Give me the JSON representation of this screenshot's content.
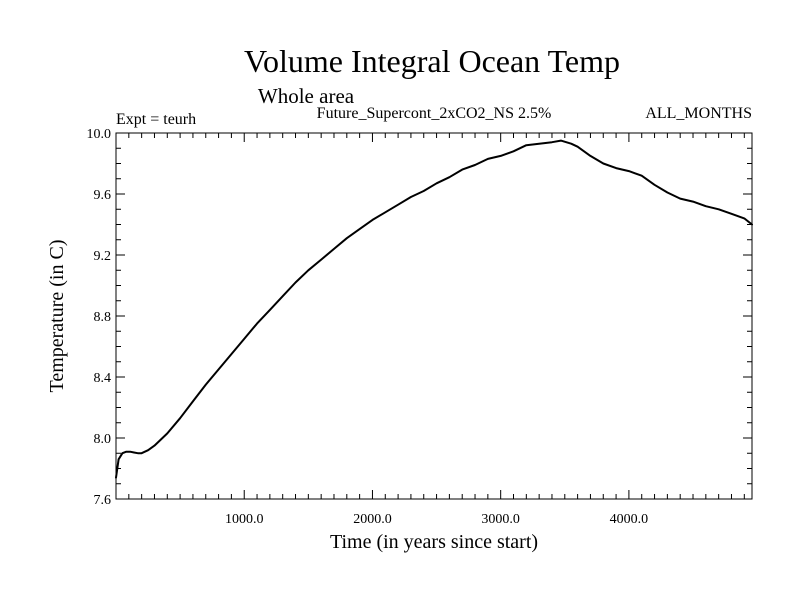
{
  "chart_data": {
    "type": "line",
    "title": "Volume Integral Ocean Temp",
    "subtitle": "Whole area",
    "expt_label": "Expt = teurh",
    "run_label": "Future_Supercont_2xCO2_NS 2.5%",
    "months_label": "ALL_MONTHS",
    "xlabel": "Time (in years since start)",
    "ylabel": "Temperature (in C)",
    "xlim": [
      0,
      4960
    ],
    "ylim": [
      7.6,
      10.0
    ],
    "xticks": [
      1000,
      2000,
      3000,
      4000
    ],
    "xtick_labels": [
      "1000.0",
      "2000.0",
      "3000.0",
      "4000.0"
    ],
    "yticks": [
      7.6,
      8.0,
      8.4,
      8.8,
      9.2,
      9.6,
      10.0
    ],
    "ytick_labels": [
      "7.6",
      "8.0",
      "8.4",
      "8.8",
      "9.2",
      "9.6",
      "10.0"
    ],
    "grid": false,
    "series": [
      {
        "color": "#000000",
        "x": [
          0,
          20,
          50,
          80,
          110,
          140,
          170,
          200,
          250,
          300,
          350,
          400,
          500,
          600,
          700,
          800,
          900,
          1000,
          1100,
          1200,
          1300,
          1400,
          1500,
          1600,
          1700,
          1800,
          1900,
          2000,
          2100,
          2200,
          2300,
          2400,
          2500,
          2600,
          2700,
          2800,
          2900,
          3000,
          3100,
          3200,
          3300,
          3400,
          3470,
          3550,
          3600,
          3700,
          3800,
          3900,
          4000,
          4100,
          4200,
          4300,
          4400,
          4500,
          4600,
          4700,
          4800,
          4900,
          4960
        ],
        "y": [
          7.74,
          7.86,
          7.9,
          7.91,
          7.91,
          7.905,
          7.9,
          7.9,
          7.92,
          7.95,
          7.99,
          8.03,
          8.13,
          8.24,
          8.35,
          8.45,
          8.55,
          8.65,
          8.75,
          8.84,
          8.93,
          9.02,
          9.1,
          9.17,
          9.24,
          9.31,
          9.37,
          9.43,
          9.48,
          9.53,
          9.58,
          9.62,
          9.67,
          9.71,
          9.76,
          9.79,
          9.83,
          9.85,
          9.88,
          9.92,
          9.93,
          9.94,
          9.95,
          9.93,
          9.91,
          9.85,
          9.8,
          9.77,
          9.75,
          9.72,
          9.66,
          9.61,
          9.57,
          9.55,
          9.52,
          9.5,
          9.47,
          9.44,
          9.4
        ]
      }
    ]
  }
}
